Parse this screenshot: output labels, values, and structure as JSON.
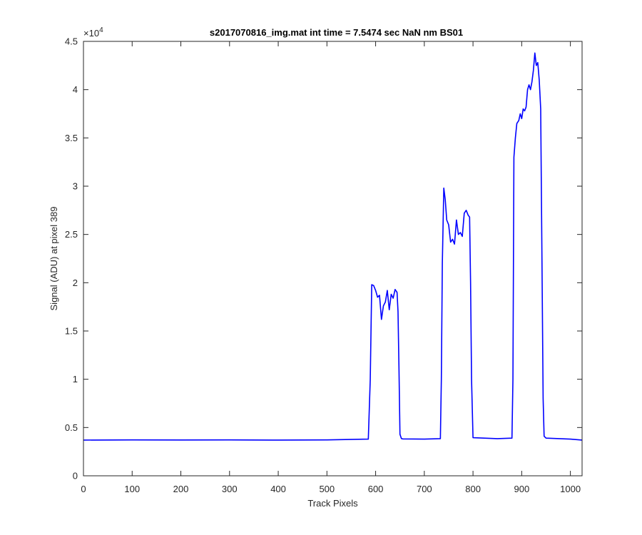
{
  "chart_data": {
    "type": "line",
    "title": "s2017070816_img.mat int time = 7.5474 sec  NaN nm BS01",
    "xlabel": "Track Pixels",
    "ylabel": "Signal (ADU) at pixel 389",
    "xlim": [
      0,
      1024
    ],
    "ylim": [
      0,
      45000
    ],
    "x_ticks": [
      0,
      100,
      200,
      300,
      400,
      500,
      600,
      700,
      800,
      900,
      1000
    ],
    "x_tick_labels": [
      "0",
      "100",
      "200",
      "300",
      "400",
      "500",
      "600",
      "700",
      "800",
      "900",
      "1000"
    ],
    "y_ticks": [
      0,
      5000,
      10000,
      15000,
      20000,
      25000,
      30000,
      35000,
      40000,
      45000
    ],
    "y_tick_labels": [
      "0",
      "0.5",
      "1",
      "1.5",
      "2",
      "2.5",
      "3",
      "3.5",
      "4",
      "4.5"
    ],
    "y_exponent_label": "×10",
    "y_exponent_power": "4",
    "grid": false,
    "line_color": "#0000ff",
    "series": [
      {
        "x": [
          0,
          100,
          200,
          300,
          400,
          500,
          585,
          589,
          592,
          596,
          600,
          604,
          608,
          612,
          616,
          620,
          624,
          628,
          632,
          636,
          640,
          644,
          646,
          648,
          650,
          653,
          656,
          700,
          733,
          735,
          737,
          740,
          743,
          746,
          750,
          754,
          758,
          762,
          766,
          770,
          774,
          778,
          782,
          786,
          790,
          793,
          795,
          797,
          800,
          850,
          880,
          882,
          884,
          887,
          890,
          894,
          897,
          900,
          903,
          906,
          909,
          912,
          915,
          918,
          921,
          924,
          927,
          930,
          933,
          936,
          939,
          942,
          944,
          946,
          950,
          1000,
          1024
        ],
        "y": [
          3700,
          3720,
          3710,
          3720,
          3700,
          3720,
          3800,
          10000,
          19800,
          19700,
          19200,
          18500,
          18700,
          16200,
          17600,
          18000,
          19200,
          17200,
          18800,
          18400,
          19300,
          19000,
          17000,
          11000,
          4300,
          3850,
          3820,
          3800,
          3850,
          10000,
          22000,
          29800,
          28600,
          26500,
          26000,
          24200,
          24500,
          24000,
          26500,
          25000,
          25200,
          24800,
          27200,
          27500,
          27000,
          26800,
          20000,
          10000,
          3950,
          3850,
          3900,
          10000,
          33000,
          35000,
          36500,
          36800,
          37500,
          37000,
          38000,
          37800,
          38200,
          40000,
          40500,
          40000,
          40800,
          42000,
          43800,
          42500,
          42800,
          41000,
          38000,
          20000,
          8000,
          4100,
          3900,
          3800,
          3700
        ]
      }
    ]
  }
}
